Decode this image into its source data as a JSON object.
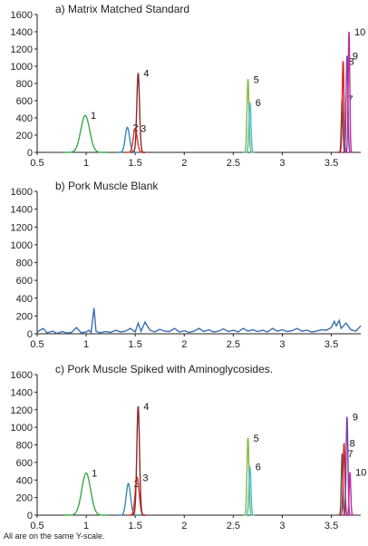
{
  "chart_data": [
    {
      "type": "line",
      "title": "a) Matrix Matched Standard",
      "xlim": [
        0.5,
        3.8
      ],
      "ylim": [
        0,
        1600
      ],
      "xticks": [
        "0.5",
        "1",
        "1.5",
        "2",
        "2.5",
        "3",
        "3.5"
      ],
      "yticks": [
        "0",
        "200",
        "400",
        "600",
        "800",
        "1000",
        "1200",
        "1400",
        "1600"
      ],
      "grid": false,
      "series": [
        {
          "label": "1",
          "color": "#3aaa4a",
          "center": 0.99,
          "width": 0.045,
          "height": 430
        },
        {
          "label": "2",
          "color": "#3a86b8",
          "center": 1.42,
          "width": 0.022,
          "height": 290
        },
        {
          "label": "3",
          "color": "#d93a2a",
          "center": 1.5,
          "width": 0.02,
          "height": 280
        },
        {
          "label": "4",
          "color": "#8b2a2a",
          "center": 1.53,
          "width": 0.014,
          "height": 920
        },
        {
          "label": "5",
          "color": "#8ab840",
          "center": 2.65,
          "width": 0.01,
          "height": 850
        },
        {
          "label": "6",
          "color": "#3fc0d8",
          "center": 2.67,
          "width": 0.01,
          "height": 580
        },
        {
          "label": "7",
          "color": "#555555",
          "center": 3.61,
          "width": 0.008,
          "height": 620
        },
        {
          "label": "8",
          "color": "#e01e1e",
          "center": 3.62,
          "width": 0.009,
          "height": 1060
        },
        {
          "label": "9",
          "color": "#7a3fa8",
          "center": 3.66,
          "width": 0.009,
          "height": 1120
        },
        {
          "label": "10",
          "color": "#c02c9c",
          "center": 3.68,
          "width": 0.008,
          "height": 1400
        }
      ]
    },
    {
      "type": "line",
      "title": "b) Pork Muscle Blank",
      "xlim": [
        0.5,
        3.8
      ],
      "ylim": [
        0,
        1600
      ],
      "xticks": [
        "0.5",
        "1",
        "1.5",
        "2",
        "2.5",
        "3",
        "3.5"
      ],
      "yticks": [
        "0",
        "200",
        "400",
        "600",
        "800",
        "1000",
        "1200",
        "1400",
        "1600"
      ],
      "grid": false,
      "series": [
        {
          "color": "#3a6fb0",
          "x": [
            0.5,
            0.56,
            0.6,
            0.66,
            0.7,
            0.76,
            0.8,
            0.85,
            0.9,
            0.95,
            1.0,
            1.03,
            1.05,
            1.08,
            1.1,
            1.14,
            1.2,
            1.25,
            1.3,
            1.35,
            1.4,
            1.45,
            1.5,
            1.53,
            1.56,
            1.6,
            1.65,
            1.7,
            1.75,
            1.8,
            1.85,
            1.9,
            1.95,
            2.0,
            2.05,
            2.1,
            2.15,
            2.2,
            2.25,
            2.3,
            2.35,
            2.4,
            2.45,
            2.5,
            2.55,
            2.6,
            2.65,
            2.7,
            2.75,
            2.8,
            2.85,
            2.9,
            2.95,
            3.0,
            3.05,
            3.1,
            3.15,
            3.2,
            3.25,
            3.3,
            3.35,
            3.4,
            3.45,
            3.5,
            3.53,
            3.55,
            3.58,
            3.6,
            3.65,
            3.7,
            3.75,
            3.8
          ],
          "y": [
            20,
            60,
            10,
            30,
            5,
            25,
            8,
            15,
            70,
            10,
            20,
            40,
            15,
            290,
            30,
            10,
            25,
            15,
            40,
            20,
            30,
            60,
            20,
            120,
            30,
            130,
            40,
            20,
            50,
            30,
            25,
            60,
            20,
            35,
            15,
            30,
            60,
            25,
            45,
            20,
            30,
            55,
            25,
            40,
            20,
            60,
            30,
            45,
            25,
            40,
            20,
            60,
            30,
            45,
            25,
            35,
            60,
            30,
            40,
            20,
            30,
            45,
            40,
            70,
            140,
            90,
            150,
            60,
            120,
            45,
            30,
            90
          ]
        }
      ]
    },
    {
      "type": "line",
      "title": "c) Pork Muscle Spiked with  Aminoglycosides.",
      "xlim": [
        0.5,
        3.8
      ],
      "ylim": [
        0,
        1600
      ],
      "xticks": [
        "0.5",
        "1",
        "1.5",
        "2",
        "2.5",
        "3",
        "3.5"
      ],
      "yticks": [
        "0",
        "200",
        "400",
        "600",
        "800",
        "1000",
        "1200",
        "1400",
        "1600"
      ],
      "grid": false,
      "series": [
        {
          "label": "1",
          "color": "#3aaa4a",
          "center": 1.0,
          "width": 0.045,
          "height": 480
        },
        {
          "label": "2",
          "color": "#3a86b8",
          "center": 1.43,
          "width": 0.022,
          "height": 360
        },
        {
          "label": "3",
          "color": "#d93a2a",
          "center": 1.52,
          "width": 0.02,
          "height": 430
        },
        {
          "label": "4",
          "color": "#8b2a2a",
          "center": 1.53,
          "width": 0.014,
          "height": 1240
        },
        {
          "label": "5",
          "color": "#8ab840",
          "center": 2.65,
          "width": 0.01,
          "height": 880
        },
        {
          "label": "6",
          "color": "#3fc0d8",
          "center": 2.67,
          "width": 0.01,
          "height": 550
        },
        {
          "label": "7",
          "color": "#555555",
          "center": 3.61,
          "width": 0.008,
          "height": 700
        },
        {
          "label": "8",
          "color": "#e01e1e",
          "center": 3.63,
          "width": 0.009,
          "height": 820
        },
        {
          "label": "9",
          "color": "#7a3fa8",
          "center": 3.66,
          "width": 0.009,
          "height": 1120
        },
        {
          "label": "10",
          "color": "#c02c9c",
          "center": 3.69,
          "width": 0.008,
          "height": 490
        }
      ]
    }
  ],
  "footnote": "All are on the same Y-scale."
}
